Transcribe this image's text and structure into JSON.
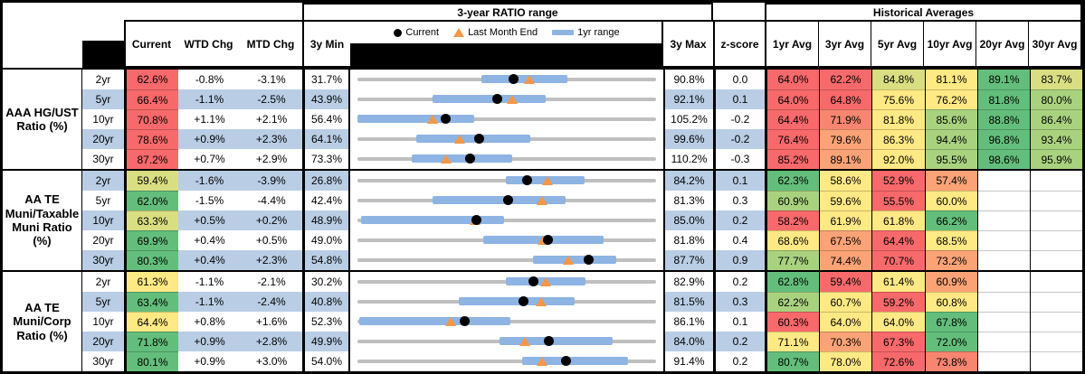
{
  "palette": {
    "r": "#F8696B",
    "s": "#F88570",
    "o": "#FBA376",
    "y": "#FFE984",
    "yg": "#D9DE82",
    "lg": "#A9D27F",
    "g": "#63BE7B",
    "row_blue": "#B9CDE5",
    "bar_blue": "#8DB4E2",
    "track_gray": "#BFBFBF",
    "triangle_orange": "#F79646",
    "dot_black": "#000000"
  },
  "header": {
    "mid_title": "3-year RATIO range",
    "hist_title": "Historical Averages",
    "col_current": "Current",
    "col_wtd": "WTD Chg",
    "col_mtd": "MTD Chg",
    "col_min": "3y Min",
    "col_max": "3y Max",
    "col_z": "z-score",
    "avg_cols": [
      "1yr Avg",
      "3yr Avg",
      "5yr Avg",
      "10yr Avg",
      "20yr Avg",
      "30yr Avg"
    ],
    "legend": {
      "current": "Current",
      "last_month": "Last Month End",
      "range": "1yr range"
    }
  },
  "chart_data": {
    "type": "table",
    "title": "3-year RATIO range with Historical Averages",
    "notes": "Each row: dot=Current, triangle=Last Month End, blue bar=1yr range, gray track spans 3y Min to 3y Max",
    "groups": [
      {
        "label_lines": [
          "AAA HG/UST",
          "Ratio (%)"
        ],
        "rows": [
          {
            "tenor": "2yr",
            "shade": false,
            "current": {
              "text": "62.6%",
              "color": "r"
            },
            "wtd": "-0.8%",
            "mtd": "-3.1%",
            "min": "31.7%",
            "max": "90.8%",
            "z": "0.0",
            "chart": {
              "min": 31.7,
              "max": 90.8,
              "cur": 62.6,
              "lme": 65.7,
              "bar": [
                56.2,
                73.3
              ]
            },
            "avgs": [
              {
                "text": "64.0%",
                "color": "r"
              },
              {
                "text": "62.2%",
                "color": "r"
              },
              {
                "text": "84.8%",
                "color": "yg"
              },
              {
                "text": "81.1%",
                "color": "y"
              },
              {
                "text": "89.1%",
                "color": "g"
              },
              {
                "text": "83.7%",
                "color": "yg"
              }
            ]
          },
          {
            "tenor": "5yr",
            "shade": true,
            "current": {
              "text": "66.4%",
              "color": "r"
            },
            "wtd": "-1.1%",
            "mtd": "-2.5%",
            "min": "43.9%",
            "max": "92.1%",
            "z": "0.1",
            "chart": {
              "min": 43.9,
              "max": 92.1,
              "cur": 66.4,
              "lme": 68.9,
              "bar": [
                56.0,
                74.3
              ]
            },
            "avgs": [
              {
                "text": "64.0%",
                "color": "r"
              },
              {
                "text": "64.8%",
                "color": "r"
              },
              {
                "text": "75.6%",
                "color": "y"
              },
              {
                "text": "76.2%",
                "color": "y"
              },
              {
                "text": "81.8%",
                "color": "g"
              },
              {
                "text": "80.0%",
                "color": "lg"
              }
            ]
          },
          {
            "tenor": "10yr",
            "shade": false,
            "current": {
              "text": "70.8%",
              "color": "r"
            },
            "wtd": "+1.1%",
            "mtd": "+2.1%",
            "min": "56.4%",
            "max": "105.2%",
            "z": "-0.2",
            "chart": {
              "min": 56.4,
              "max": 105.2,
              "cur": 70.8,
              "lme": 68.7,
              "bar": [
                56.4,
                75.5
              ]
            },
            "avgs": [
              {
                "text": "64.4%",
                "color": "r"
              },
              {
                "text": "71.9%",
                "color": "s"
              },
              {
                "text": "81.8%",
                "color": "y"
              },
              {
                "text": "85.6%",
                "color": "lg"
              },
              {
                "text": "88.8%",
                "color": "g"
              },
              {
                "text": "86.4%",
                "color": "lg"
              }
            ]
          },
          {
            "tenor": "20yr",
            "shade": true,
            "current": {
              "text": "78.6%",
              "color": "r"
            },
            "wtd": "+0.9%",
            "mtd": "+2.3%",
            "min": "64.1%",
            "max": "99.6%",
            "z": "-0.2",
            "chart": {
              "min": 64.1,
              "max": 99.6,
              "cur": 78.6,
              "lme": 76.3,
              "bar": [
                71.1,
                84.7
              ]
            },
            "avgs": [
              {
                "text": "76.4%",
                "color": "r"
              },
              {
                "text": "79.6%",
                "color": "o"
              },
              {
                "text": "86.3%",
                "color": "y"
              },
              {
                "text": "94.4%",
                "color": "lg"
              },
              {
                "text": "96.8%",
                "color": "g"
              },
              {
                "text": "93.4%",
                "color": "lg"
              }
            ]
          },
          {
            "tenor": "30yr",
            "shade": false,
            "current": {
              "text": "87.2%",
              "color": "r"
            },
            "wtd": "+0.7%",
            "mtd": "+2.9%",
            "min": "73.3%",
            "max": "110.2%",
            "z": "-0.3",
            "chart": {
              "min": 73.3,
              "max": 110.2,
              "cur": 87.2,
              "lme": 84.3,
              "bar": [
                80.0,
                92.4
              ]
            },
            "avgs": [
              {
                "text": "85.2%",
                "color": "r"
              },
              {
                "text": "89.1%",
                "color": "o"
              },
              {
                "text": "92.0%",
                "color": "y"
              },
              {
                "text": "95.5%",
                "color": "lg"
              },
              {
                "text": "98.6%",
                "color": "g"
              },
              {
                "text": "95.9%",
                "color": "lg"
              }
            ]
          }
        ]
      },
      {
        "label_lines": [
          "AA TE",
          "Muni/Taxable",
          "Muni Ratio",
          "(%)"
        ],
        "rows": [
          {
            "tenor": "2yr",
            "shade": true,
            "current": {
              "text": "59.4%",
              "color": "yg"
            },
            "wtd": "-1.6%",
            "mtd": "-3.9%",
            "min": "26.8%",
            "max": "84.2%",
            "z": "0.1",
            "chart": {
              "min": 26.8,
              "max": 84.2,
              "cur": 59.4,
              "lme": 63.3,
              "bar": [
                55.3,
                70.4
              ]
            },
            "avgs": [
              {
                "text": "62.3%",
                "color": "g"
              },
              {
                "text": "58.6%",
                "color": "y"
              },
              {
                "text": "52.9%",
                "color": "r"
              },
              {
                "text": "57.4%",
                "color": "o"
              },
              null,
              null
            ]
          },
          {
            "tenor": "5yr",
            "shade": false,
            "current": {
              "text": "62.0%",
              "color": "g"
            },
            "wtd": "-1.5%",
            "mtd": "-4.4%",
            "min": "42.4%",
            "max": "81.3%",
            "z": "0.3",
            "chart": {
              "min": 42.4,
              "max": 81.3,
              "cur": 62.0,
              "lme": 66.4,
              "bar": [
                52.2,
                69.5
              ]
            },
            "avgs": [
              {
                "text": "60.9%",
                "color": "lg"
              },
              {
                "text": "59.6%",
                "color": "y"
              },
              {
                "text": "55.5%",
                "color": "r"
              },
              {
                "text": "60.0%",
                "color": "y"
              },
              null,
              null
            ]
          },
          {
            "tenor": "10yr",
            "shade": true,
            "current": {
              "text": "63.3%",
              "color": "yg"
            },
            "wtd": "+0.5%",
            "mtd": "+0.2%",
            "min": "48.9%",
            "max": "85.0%",
            "z": "0.2",
            "chart": {
              "min": 48.9,
              "max": 85.0,
              "cur": 63.3,
              "lme": 63.1,
              "bar": [
                49.3,
                66.6
              ]
            },
            "avgs": [
              {
                "text": "58.2%",
                "color": "r"
              },
              {
                "text": "61.9%",
                "color": "y"
              },
              {
                "text": "61.8%",
                "color": "y"
              },
              {
                "text": "66.2%",
                "color": "g"
              },
              null,
              null
            ]
          },
          {
            "tenor": "20yr",
            "shade": false,
            "current": {
              "text": "69.9%",
              "color": "g"
            },
            "wtd": "+0.4%",
            "mtd": "+0.5%",
            "min": "49.0%",
            "max": "81.8%",
            "z": "0.4",
            "chart": {
              "min": 49.0,
              "max": 81.8,
              "cur": 69.9,
              "lme": 69.4,
              "bar": [
                62.8,
                76.0
              ]
            },
            "avgs": [
              {
                "text": "68.6%",
                "color": "y"
              },
              {
                "text": "67.5%",
                "color": "o"
              },
              {
                "text": "64.4%",
                "color": "r"
              },
              {
                "text": "68.5%",
                "color": "y"
              },
              null,
              null
            ]
          },
          {
            "tenor": "30yr",
            "shade": true,
            "current": {
              "text": "80.3%",
              "color": "g"
            },
            "wtd": "+0.4%",
            "mtd": "+2.3%",
            "min": "54.8%",
            "max": "87.7%",
            "z": "0.9",
            "chart": {
              "min": 54.8,
              "max": 87.7,
              "cur": 80.3,
              "lme": 78.0,
              "bar": [
                74.1,
                83.3
              ]
            },
            "avgs": [
              {
                "text": "77.7%",
                "color": "lg"
              },
              {
                "text": "74.4%",
                "color": "o"
              },
              {
                "text": "70.7%",
                "color": "r"
              },
              {
                "text": "73.2%",
                "color": "o"
              },
              null,
              null
            ]
          }
        ]
      },
      {
        "label_lines": [
          "AA TE",
          "Muni/Corp",
          "Ratio (%)"
        ],
        "rows": [
          {
            "tenor": "2yr",
            "shade": false,
            "current": {
              "text": "61.3%",
              "color": "y"
            },
            "wtd": "-1.1%",
            "mtd": "-2.1%",
            "min": "30.2%",
            "max": "82.9%",
            "z": "0.2",
            "chart": {
              "min": 30.2,
              "max": 82.9,
              "cur": 61.3,
              "lme": 63.4,
              "bar": [
                56.4,
                70.5
              ]
            },
            "avgs": [
              {
                "text": "62.8%",
                "color": "g"
              },
              {
                "text": "59.4%",
                "color": "r"
              },
              {
                "text": "61.4%",
                "color": "y"
              },
              {
                "text": "60.9%",
                "color": "o"
              },
              null,
              null
            ]
          },
          {
            "tenor": "5yr",
            "shade": true,
            "current": {
              "text": "63.4%",
              "color": "g"
            },
            "wtd": "-1.1%",
            "mtd": "-2.4%",
            "min": "40.8%",
            "max": "81.5%",
            "z": "0.3",
            "chart": {
              "min": 40.8,
              "max": 81.5,
              "cur": 63.4,
              "lme": 65.8,
              "bar": [
                54.6,
                70.4
              ]
            },
            "avgs": [
              {
                "text": "62.2%",
                "color": "lg"
              },
              {
                "text": "60.7%",
                "color": "y"
              },
              {
                "text": "59.2%",
                "color": "r"
              },
              {
                "text": "60.8%",
                "color": "y"
              },
              null,
              null
            ]
          },
          {
            "tenor": "10yr",
            "shade": false,
            "current": {
              "text": "64.4%",
              "color": "y"
            },
            "wtd": "+0.8%",
            "mtd": "+1.6%",
            "min": "52.3%",
            "max": "86.1%",
            "z": "0.1",
            "chart": {
              "min": 52.3,
              "max": 86.1,
              "cur": 64.4,
              "lme": 62.8,
              "bar": [
                52.5,
                69.6
              ]
            },
            "avgs": [
              {
                "text": "60.3%",
                "color": "r"
              },
              {
                "text": "64.0%",
                "color": "y"
              },
              {
                "text": "64.0%",
                "color": "y"
              },
              {
                "text": "67.8%",
                "color": "g"
              },
              null,
              null
            ]
          },
          {
            "tenor": "20yr",
            "shade": true,
            "current": {
              "text": "71.8%",
              "color": "g"
            },
            "wtd": "+0.9%",
            "mtd": "+2.8%",
            "min": "49.9%",
            "max": "84.0%",
            "z": "0.2",
            "chart": {
              "min": 49.9,
              "max": 84.0,
              "cur": 71.8,
              "lme": 69.0,
              "bar": [
                66.1,
                79.0
              ]
            },
            "avgs": [
              {
                "text": "71.1%",
                "color": "y"
              },
              {
                "text": "70.3%",
                "color": "o"
              },
              {
                "text": "67.3%",
                "color": "r"
              },
              {
                "text": "72.0%",
                "color": "g"
              },
              null,
              null
            ]
          },
          {
            "tenor": "30yr",
            "shade": false,
            "current": {
              "text": "80.1%",
              "color": "g"
            },
            "wtd": "+0.9%",
            "mtd": "+3.0%",
            "min": "54.0%",
            "max": "91.4%",
            "z": "0.2",
            "chart": {
              "min": 54.0,
              "max": 91.4,
              "cur": 80.1,
              "lme": 77.1,
              "bar": [
                74.6,
                87.9
              ]
            },
            "avgs": [
              {
                "text": "80.7%",
                "color": "g"
              },
              {
                "text": "78.0%",
                "color": "y"
              },
              {
                "text": "72.6%",
                "color": "r"
              },
              {
                "text": "73.8%",
                "color": "s"
              },
              null,
              null
            ]
          }
        ]
      }
    ]
  }
}
